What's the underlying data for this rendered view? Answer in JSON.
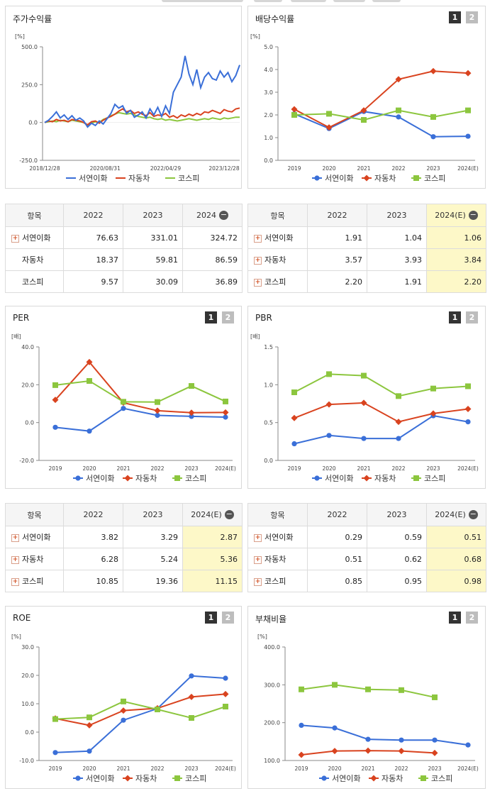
{
  "buttons": {
    "b1": "1",
    "b2": "2"
  },
  "chart_data": [
    {
      "id": "stock",
      "type": "line",
      "title": "주가수익률",
      "unit": "[%]",
      "x_ticks": [
        "2018/12/28",
        "2020/08/31",
        "2022/04/29",
        "2023/12/28"
      ],
      "ylim": [
        -250,
        500
      ],
      "y_ticks": [
        "500.0",
        "250.0",
        "0.0",
        "-250.0"
      ],
      "series": [
        {
          "name": "서연이화",
          "color": "#3a6fd8",
          "x": [
            0,
            0.02,
            0.04,
            0.06,
            0.08,
            0.1,
            0.12,
            0.14,
            0.16,
            0.18,
            0.2,
            0.22,
            0.24,
            0.26,
            0.28,
            0.3,
            0.32,
            0.34,
            0.36,
            0.38,
            0.4,
            0.42,
            0.44,
            0.46,
            0.48,
            0.5,
            0.52,
            0.54,
            0.56,
            0.58,
            0.6,
            0.62,
            0.64,
            0.66,
            0.68,
            0.7,
            0.72,
            0.74,
            0.76,
            0.78,
            0.8,
            0.82,
            0.84,
            0.86,
            0.88,
            0.9,
            0.92,
            0.94,
            0.96,
            0.98,
            1.0
          ],
          "values": [
            0,
            15,
            40,
            70,
            30,
            50,
            20,
            45,
            15,
            30,
            10,
            -30,
            -5,
            -20,
            10,
            -10,
            25,
            60,
            120,
            95,
            110,
            60,
            80,
            35,
            50,
            70,
            30,
            90,
            50,
            100,
            40,
            110,
            60,
            200,
            250,
            300,
            440,
            320,
            250,
            350,
            230,
            300,
            330,
            290,
            280,
            340,
            300,
            330,
            270,
            310,
            380
          ]
        },
        {
          "name": "자동차",
          "color": "#d9431f",
          "x": [
            0,
            0.02,
            0.04,
            0.06,
            0.08,
            0.1,
            0.12,
            0.14,
            0.16,
            0.18,
            0.2,
            0.22,
            0.24,
            0.26,
            0.28,
            0.3,
            0.32,
            0.34,
            0.36,
            0.38,
            0.4,
            0.42,
            0.44,
            0.46,
            0.48,
            0.5,
            0.52,
            0.54,
            0.56,
            0.58,
            0.6,
            0.62,
            0.64,
            0.66,
            0.68,
            0.7,
            0.72,
            0.74,
            0.76,
            0.78,
            0.8,
            0.82,
            0.84,
            0.86,
            0.88,
            0.9,
            0.92,
            0.94,
            0.96,
            0.98,
            1.0
          ],
          "values": [
            0,
            10,
            5,
            20,
            10,
            15,
            5,
            20,
            15,
            10,
            0,
            -15,
            5,
            10,
            -5,
            15,
            30,
            40,
            55,
            75,
            90,
            70,
            80,
            60,
            70,
            55,
            45,
            65,
            40,
            50,
            45,
            60,
            35,
            45,
            30,
            50,
            40,
            55,
            45,
            60,
            50,
            70,
            65,
            80,
            70,
            60,
            85,
            75,
            70,
            90,
            95
          ]
        },
        {
          "name": "코스피",
          "color": "#8cc63e",
          "x": [
            0,
            0.02,
            0.04,
            0.06,
            0.08,
            0.1,
            0.12,
            0.14,
            0.16,
            0.18,
            0.2,
            0.22,
            0.24,
            0.26,
            0.28,
            0.3,
            0.32,
            0.34,
            0.36,
            0.38,
            0.4,
            0.42,
            0.44,
            0.46,
            0.48,
            0.5,
            0.52,
            0.54,
            0.56,
            0.58,
            0.6,
            0.62,
            0.64,
            0.66,
            0.68,
            0.7,
            0.72,
            0.74,
            0.76,
            0.78,
            0.8,
            0.82,
            0.84,
            0.86,
            0.88,
            0.9,
            0.92,
            0.94,
            0.96,
            0.98,
            1.0
          ],
          "values": [
            0,
            5,
            10,
            5,
            15,
            10,
            5,
            15,
            10,
            5,
            0,
            -20,
            -5,
            5,
            0,
            20,
            30,
            45,
            55,
            65,
            60,
            55,
            60,
            50,
            40,
            35,
            30,
            35,
            25,
            20,
            25,
            15,
            20,
            15,
            10,
            15,
            20,
            25,
            20,
            15,
            20,
            25,
            20,
            30,
            25,
            20,
            30,
            25,
            30,
            35,
            35
          ]
        }
      ],
      "legend": [
        "서연이화",
        "자동차",
        "코스피"
      ]
    },
    {
      "id": "dividend",
      "type": "line",
      "title": "배당수익률",
      "unit": "[%]",
      "categories": [
        "2019",
        "2020",
        "2021",
        "2022",
        "2023",
        "2024(E)"
      ],
      "ylim": [
        0,
        5
      ],
      "y_ticks": [
        "5.0",
        "4.0",
        "3.0",
        "2.0",
        "1.0",
        "0.0"
      ],
      "series": [
        {
          "name": "서연이화",
          "color": "#3a6fd8",
          "marker": "circle",
          "values": [
            2.05,
            1.4,
            2.15,
            1.91,
            1.04,
            1.06
          ]
        },
        {
          "name": "자동차",
          "color": "#d9431f",
          "marker": "diamond",
          "values": [
            2.25,
            1.45,
            2.2,
            3.57,
            3.93,
            3.84
          ]
        },
        {
          "name": "코스피",
          "color": "#8cc63e",
          "marker": "square",
          "values": [
            2.0,
            2.05,
            1.78,
            2.2,
            1.91,
            2.2
          ]
        }
      ],
      "legend": [
        "서연이화",
        "자동차",
        "코스피"
      ]
    },
    {
      "id": "per",
      "type": "line",
      "title": "PER",
      "unit": "[배]",
      "categories": [
        "2019",
        "2020",
        "2021",
        "2022",
        "2023",
        "2024(E)"
      ],
      "ylim": [
        -20,
        40
      ],
      "y_ticks": [
        "40.0",
        "20.0",
        "0.0",
        "-20.0"
      ],
      "series": [
        {
          "name": "서연이화",
          "color": "#3a6fd8",
          "marker": "circle",
          "values": [
            -2.5,
            -4.5,
            7.5,
            3.82,
            3.29,
            2.87
          ]
        },
        {
          "name": "자동차",
          "color": "#d9431f",
          "marker": "diamond",
          "values": [
            12.0,
            32.0,
            10.5,
            6.28,
            5.24,
            5.36
          ]
        },
        {
          "name": "코스피",
          "color": "#8cc63e",
          "marker": "square",
          "values": [
            19.8,
            22.0,
            11.0,
            10.85,
            19.36,
            11.15
          ]
        }
      ],
      "legend": [
        "서연이화",
        "자동차",
        "코스피"
      ]
    },
    {
      "id": "pbr",
      "type": "line",
      "title": "PBR",
      "unit": "[배]",
      "categories": [
        "2019",
        "2020",
        "2021",
        "2022",
        "2023",
        "2024(E)"
      ],
      "ylim": [
        0,
        1.5
      ],
      "y_ticks": [
        "1.5",
        "1.0",
        "0.5",
        "0.0"
      ],
      "series": [
        {
          "name": "서연이화",
          "color": "#3a6fd8",
          "marker": "circle",
          "values": [
            0.22,
            0.33,
            0.29,
            0.29,
            0.59,
            0.51
          ]
        },
        {
          "name": "자동차",
          "color": "#d9431f",
          "marker": "diamond",
          "values": [
            0.56,
            0.74,
            0.76,
            0.51,
            0.62,
            0.68
          ]
        },
        {
          "name": "코스피",
          "color": "#8cc63e",
          "marker": "square",
          "values": [
            0.9,
            1.14,
            1.12,
            0.85,
            0.95,
            0.98
          ]
        }
      ],
      "legend": [
        "서연이화",
        "자동차",
        "코스피"
      ]
    },
    {
      "id": "roe",
      "type": "line",
      "title": "ROE",
      "unit": "[%]",
      "categories": [
        "2019",
        "2020",
        "2021",
        "2022",
        "2023",
        "2024(E)"
      ],
      "ylim": [
        -10,
        30
      ],
      "y_ticks": [
        "30.0",
        "20.0",
        "10.0",
        "0.0",
        "-10.0"
      ],
      "series": [
        {
          "name": "서연이화",
          "color": "#3a6fd8",
          "marker": "circle",
          "values": [
            -7.2,
            -6.7,
            4.2,
            8.3,
            19.8,
            19.0
          ]
        },
        {
          "name": "자동차",
          "color": "#d9431f",
          "marker": "diamond",
          "values": [
            4.8,
            2.4,
            7.6,
            8.4,
            12.4,
            13.4
          ]
        },
        {
          "name": "코스피",
          "color": "#8cc63e",
          "marker": "square",
          "values": [
            4.6,
            5.2,
            10.8,
            8.0,
            5.0,
            9.0
          ]
        }
      ],
      "legend": [
        "서연이화",
        "자동차",
        "코스피"
      ]
    },
    {
      "id": "debt",
      "type": "line",
      "title": "부채비율",
      "unit": "[%]",
      "categories": [
        "2019",
        "2020",
        "2021",
        "2022",
        "2023",
        "2024(E)"
      ],
      "ylim": [
        100,
        400
      ],
      "y_ticks": [
        "400.0",
        "300.0",
        "200.0",
        "100.0"
      ],
      "series": [
        {
          "name": "서연이화",
          "color": "#3a6fd8",
          "marker": "circle",
          "values": [
            193,
            186,
            156,
            154,
            154,
            141
          ]
        },
        {
          "name": "자동차",
          "color": "#d9431f",
          "marker": "diamond",
          "values": [
            115,
            125,
            126,
            125,
            120,
            null
          ]
        },
        {
          "name": "코스피",
          "color": "#8cc63e",
          "marker": "square",
          "values": [
            288,
            300,
            288,
            286,
            267,
            null
          ]
        }
      ],
      "legend": [
        "서연이화",
        "자동차",
        "코스피"
      ]
    }
  ],
  "tables": {
    "stock": {
      "header": [
        "항목",
        "2022",
        "2023",
        "2024"
      ],
      "rows": [
        {
          "label": "서연이화",
          "plus": true,
          "values": [
            "76.63",
            "331.01",
            "324.72"
          ]
        },
        {
          "label": "자동차",
          "plus": false,
          "values": [
            "18.37",
            "59.81",
            "86.59"
          ]
        },
        {
          "label": "코스피",
          "plus": false,
          "values": [
            "9.57",
            "30.09",
            "36.89"
          ]
        }
      ]
    },
    "dividend": {
      "header": [
        "항목",
        "2022",
        "2023",
        "2024(E)"
      ],
      "rows": [
        {
          "label": "서연이화",
          "plus": true,
          "values": [
            "1.91",
            "1.04",
            "1.06"
          ]
        },
        {
          "label": "자동차",
          "plus": true,
          "values": [
            "3.57",
            "3.93",
            "3.84"
          ]
        },
        {
          "label": "코스피",
          "plus": true,
          "values": [
            "2.20",
            "1.91",
            "2.20"
          ]
        }
      ]
    },
    "per": {
      "header": [
        "항목",
        "2022",
        "2023",
        "2024(E)"
      ],
      "rows": [
        {
          "label": "서연이화",
          "plus": true,
          "values": [
            "3.82",
            "3.29",
            "2.87"
          ]
        },
        {
          "label": "자동차",
          "plus": true,
          "values": [
            "6.28",
            "5.24",
            "5.36"
          ]
        },
        {
          "label": "코스피",
          "plus": true,
          "values": [
            "10.85",
            "19.36",
            "11.15"
          ]
        }
      ]
    },
    "pbr": {
      "header": [
        "항목",
        "2022",
        "2023",
        "2024(E)"
      ],
      "rows": [
        {
          "label": "서연이화",
          "plus": true,
          "values": [
            "0.29",
            "0.59",
            "0.51"
          ]
        },
        {
          "label": "자동차",
          "plus": true,
          "values": [
            "0.51",
            "0.62",
            "0.68"
          ]
        },
        {
          "label": "코스피",
          "plus": true,
          "values": [
            "0.85",
            "0.95",
            "0.98"
          ]
        }
      ]
    }
  },
  "colors": {
    "highlight": "#fdf8c8",
    "border": "#d9d9d9"
  }
}
